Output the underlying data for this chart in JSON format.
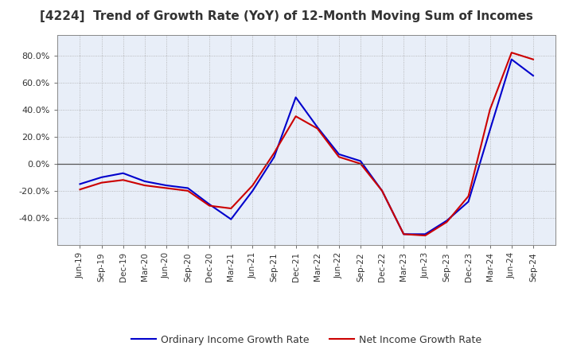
{
  "title": "[4224]  Trend of Growth Rate (YoY) of 12-Month Moving Sum of Incomes",
  "title_fontsize": 11,
  "title_color": "#333333",
  "background_color": "#ffffff",
  "plot_bg_color": "#e8eef8",
  "grid_color": "#aaaaaa",
  "x_labels": [
    "Jun-19",
    "Sep-19",
    "Dec-19",
    "Mar-20",
    "Jun-20",
    "Sep-20",
    "Dec-20",
    "Mar-21",
    "Jun-21",
    "Sep-21",
    "Dec-21",
    "Mar-22",
    "Jun-22",
    "Sep-22",
    "Dec-22",
    "Mar-23",
    "Jun-23",
    "Sep-23",
    "Dec-23",
    "Mar-24",
    "Jun-24",
    "Sep-24"
  ],
  "ordinary_income": [
    -15.0,
    -10.0,
    -7.0,
    -13.0,
    -16.0,
    -18.0,
    -30.0,
    -41.0,
    -20.0,
    5.0,
    49.0,
    27.0,
    7.0,
    2.0,
    -20.0,
    -52.0,
    -52.0,
    -42.0,
    -28.0,
    25.0,
    77.0,
    65.0
  ],
  "net_income": [
    -19.0,
    -14.0,
    -12.0,
    -16.0,
    -18.0,
    -20.0,
    -31.0,
    -33.0,
    -16.0,
    8.0,
    35.0,
    26.0,
    5.0,
    0.0,
    -20.0,
    -52.0,
    -53.0,
    -43.0,
    -24.0,
    40.0,
    82.0,
    77.0
  ],
  "ylim": [
    -60,
    95
  ],
  "yticks": [
    -40.0,
    -20.0,
    0.0,
    20.0,
    40.0,
    60.0,
    80.0
  ],
  "ordinary_color": "#0000cc",
  "net_color": "#cc0000",
  "line_width": 1.5,
  "legend_ordinary": "Ordinary Income Growth Rate",
  "legend_net": "Net Income Growth Rate"
}
